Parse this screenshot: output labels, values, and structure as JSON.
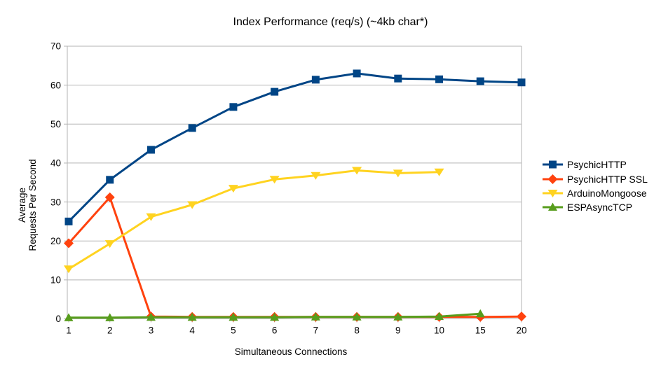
{
  "chart_data": {
    "type": "line",
    "title": "Index Performance (req/s) (~4kb char*)",
    "xlabel": "Simultaneous Connections",
    "ylabel": "Average Requests Per Second",
    "ylabel_lines": [
      "Average",
      "Requests Per Second"
    ],
    "categories": [
      "1",
      "2",
      "3",
      "4",
      "5",
      "6",
      "7",
      "8",
      "9",
      "10",
      "15",
      "20"
    ],
    "y_ticks": [
      0,
      10,
      20,
      30,
      40,
      50,
      60,
      70
    ],
    "ylim": [
      0,
      70
    ],
    "grid": "horizontal-only",
    "legend_position": "right",
    "axis_color": "#b3b3b3",
    "text_color": "#000000",
    "background_color": "#ffffff",
    "series": [
      {
        "name": "PsychicHTTP",
        "color": "#004586",
        "marker": "square",
        "values": [
          25.0,
          35.7,
          43.4,
          49.0,
          54.4,
          58.3,
          61.4,
          63.0,
          61.7,
          61.5,
          61.0,
          60.7
        ]
      },
      {
        "name": "PsychicHTTP SSL",
        "color": "#ff420e",
        "marker": "diamond",
        "values": [
          19.4,
          31.2,
          0.6,
          0.5,
          0.5,
          0.5,
          0.5,
          0.5,
          0.5,
          0.5,
          0.5,
          0.6
        ]
      },
      {
        "name": "ArduinoMongoose",
        "color": "#ffd320",
        "marker": "triangle-down",
        "values": [
          12.8,
          19.3,
          26.2,
          29.3,
          33.5,
          35.8,
          36.8,
          38.1,
          37.4,
          37.7,
          null,
          null
        ]
      },
      {
        "name": "ESPAsyncTCP",
        "color": "#579d1c",
        "marker": "triangle-up",
        "values": [
          0.3,
          0.3,
          0.4,
          0.4,
          0.4,
          0.4,
          0.5,
          0.5,
          0.5,
          0.6,
          1.3,
          null
        ]
      }
    ]
  }
}
